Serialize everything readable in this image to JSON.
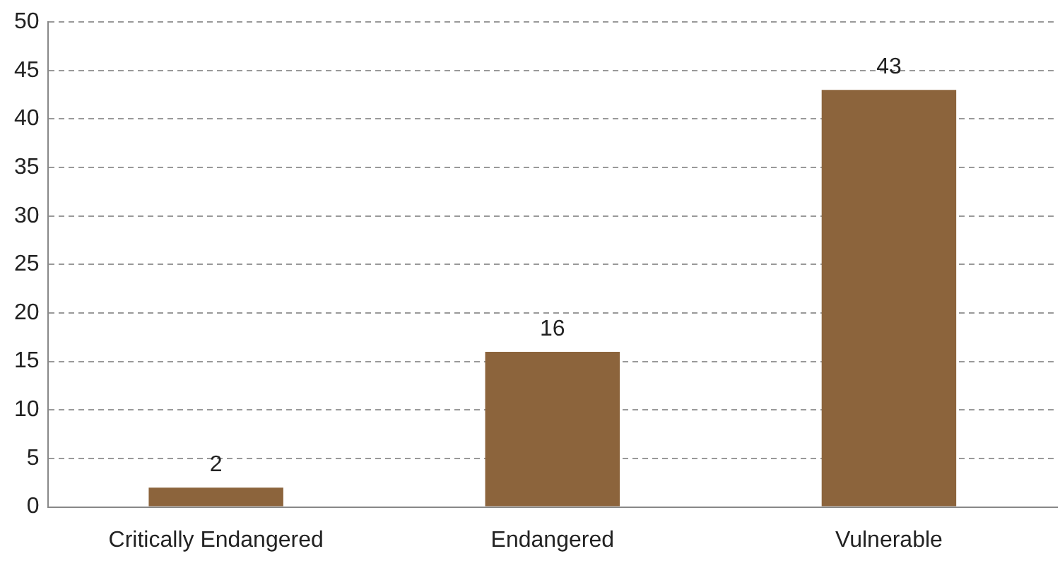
{
  "chart_data": {
    "type": "bar",
    "categories": [
      "Critically Endangered",
      "Endangered",
      "Vulnerable"
    ],
    "values": [
      2,
      16,
      43
    ],
    "color": "#8c643c",
    "ylim": [
      0,
      50
    ],
    "yticks": [
      0,
      5,
      10,
      15,
      20,
      25,
      30,
      35,
      40,
      45,
      50
    ],
    "grid": "y",
    "data_labels": true,
    "legend": false
  }
}
